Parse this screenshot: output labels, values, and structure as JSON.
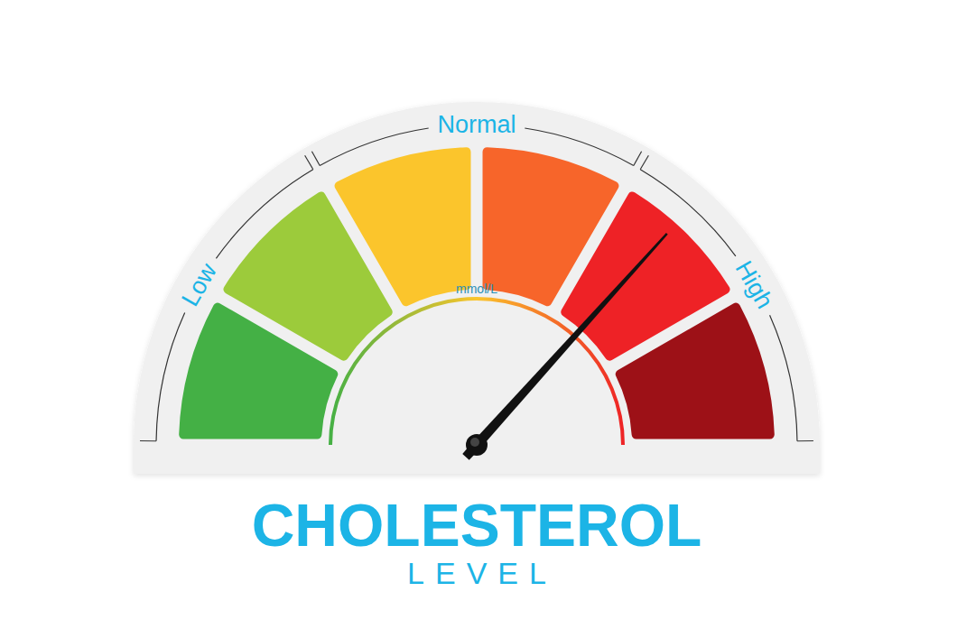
{
  "chart_data": {
    "type": "gauge",
    "title": "CHOLESTEROL",
    "subtitle": "LEVEL",
    "unit": "mmol/L",
    "ylim": [
      0,
      6
    ],
    "yticks": [
      0,
      1,
      2,
      3,
      4,
      5,
      6
    ],
    "tick_labels": false,
    "value": 4.4,
    "bands": [
      {
        "label": "Low",
        "from": 0,
        "to": 2
      },
      {
        "label": "Normal",
        "from": 2,
        "to": 4
      },
      {
        "label": "High",
        "from": 4,
        "to": 6
      }
    ],
    "colors": [
      "#44b045",
      "#9ccb3b",
      "#fbc52c",
      "#f7652a",
      "#ee2226",
      "#9d1117"
    ]
  }
}
